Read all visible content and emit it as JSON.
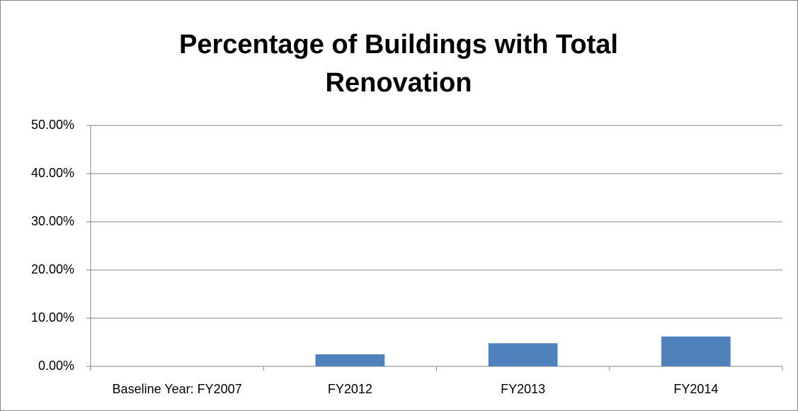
{
  "chart_data": {
    "type": "bar",
    "title": "Percentage of Buildings with Total Renovation",
    "categories": [
      "Baseline Year: FY2007",
      "FY2012",
      "FY2013",
      "FY2014"
    ],
    "values": [
      0,
      2.5,
      4.8,
      6.2
    ],
    "color": "#4f81bd",
    "ylim": [
      0,
      50
    ],
    "yticks": [
      {
        "value": 0,
        "label": "0.00%"
      },
      {
        "value": 10,
        "label": "10.00%"
      },
      {
        "value": 20,
        "label": "20.00%"
      },
      {
        "value": 30,
        "label": "30.00%"
      },
      {
        "value": 40,
        "label": "40.00%"
      },
      {
        "value": 50,
        "label": "50.00%"
      }
    ],
    "grid": true
  }
}
